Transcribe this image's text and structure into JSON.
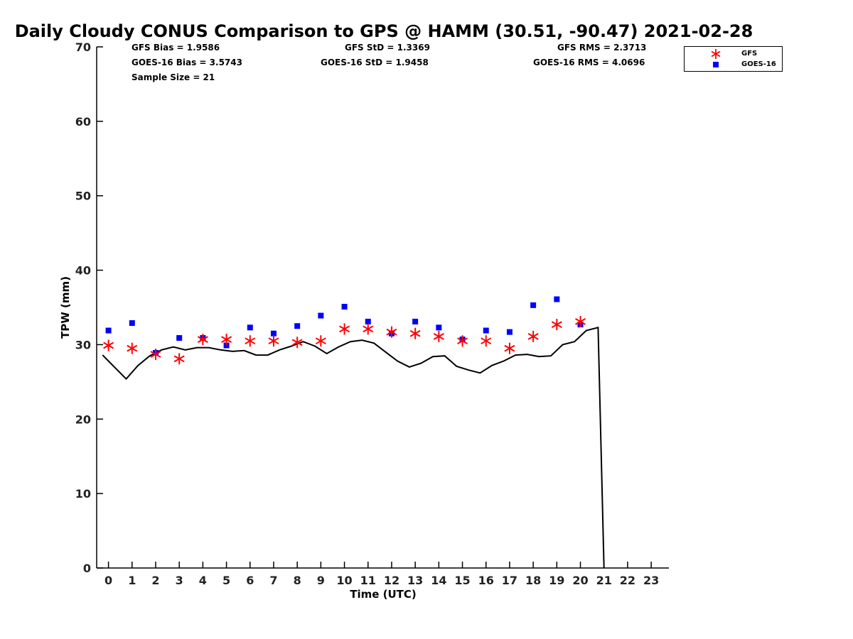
{
  "title": "Daily Cloudy CONUS Comparison to GPS @ HAMM (30.51, -90.47) 2021-02-28",
  "stats": {
    "gfs_bias": "GFS Bias = 1.9586",
    "goes_bias": "GOES-16 Bias = 3.5743",
    "sample_size": "Sample Size = 21",
    "gfs_std": "GFS StD = 1.3369",
    "goes_std": "GOES-16 StD = 1.9458",
    "gfs_rms": "GFS RMS = 2.3713",
    "goes_rms": "GOES-16 RMS = 4.0696"
  },
  "legend": {
    "gfs_label": "GFS",
    "goes_label": "GOES-16"
  },
  "colors": {
    "gfs": "#ff0000",
    "goes": "#0000ff",
    "gps_line": "#000000"
  },
  "chart_data": {
    "type": "scatter",
    "title": "Daily Cloudy CONUS Comparison to GPS @ HAMM (30.51, -90.47) 2021-02-28",
    "xlabel": "Time (UTC)",
    "ylabel": "TPW (mm)",
    "xlim": [
      -0.5,
      23.75
    ],
    "ylim": [
      0,
      70
    ],
    "x_ticks": [
      0,
      1,
      2,
      3,
      4,
      5,
      6,
      7,
      8,
      9,
      10,
      11,
      12,
      13,
      14,
      15,
      16,
      17,
      18,
      19,
      20,
      21,
      22,
      23
    ],
    "y_ticks": [
      0,
      10,
      20,
      30,
      40,
      50,
      60,
      70
    ],
    "grid": false,
    "legend_position": "top-right",
    "series": [
      {
        "name": "GFS",
        "marker": "asterisk",
        "x": [
          0,
          1,
          2,
          3,
          4,
          5,
          6,
          7,
          8,
          9,
          10,
          11,
          12,
          13,
          14,
          15,
          16,
          17,
          18,
          19,
          20
        ],
        "values": [
          29.9,
          29.5,
          28.7,
          28.1,
          30.7,
          30.7,
          30.5,
          30.5,
          30.3,
          30.5,
          32.1,
          32.1,
          31.7,
          31.5,
          31.1,
          30.5,
          30.5,
          29.5,
          31.1,
          32.7,
          33.1
        ]
      },
      {
        "name": "GOES-16",
        "marker": "square",
        "x": [
          0,
          1,
          2,
          3,
          4,
          5,
          6,
          7,
          8,
          9,
          10,
          11,
          12,
          13,
          14,
          15,
          16,
          17,
          18,
          19,
          20
        ],
        "values": [
          31.9,
          32.9,
          28.9,
          30.9,
          30.9,
          29.9,
          32.3,
          31.5,
          32.5,
          33.9,
          35.1,
          33.1,
          31.5,
          33.1,
          32.3,
          30.7,
          31.9,
          31.7,
          35.3,
          36.1,
          32.7
        ]
      },
      {
        "name": "GPS",
        "marker": "line",
        "x": [
          -0.25,
          0.25,
          0.75,
          1.25,
          1.75,
          2.25,
          2.75,
          3.25,
          3.75,
          4.25,
          4.75,
          5.25,
          5.75,
          6.25,
          6.75,
          7.25,
          7.75,
          8.25,
          8.75,
          9.25,
          9.75,
          10.25,
          10.75,
          11.25,
          11.75,
          12.25,
          12.75,
          13.25,
          13.75,
          14.25,
          14.75,
          15.25,
          15.75,
          16.25,
          16.75,
          17.25,
          17.75,
          18.25,
          18.75,
          19.25,
          19.75,
          20.25,
          20.75,
          21.0
        ],
        "values": [
          28.6,
          27.0,
          25.4,
          27.2,
          28.5,
          29.3,
          29.7,
          29.3,
          29.6,
          29.6,
          29.3,
          29.1,
          29.2,
          28.6,
          28.6,
          29.3,
          29.8,
          30.4,
          29.8,
          28.8,
          29.7,
          30.4,
          30.6,
          30.2,
          29.0,
          27.8,
          27.0,
          27.5,
          28.4,
          28.5,
          27.1,
          26.6,
          26.2,
          27.2,
          27.8,
          28.6,
          28.7,
          28.4,
          28.5,
          30.0,
          30.4,
          31.9,
          32.3,
          0
        ]
      }
    ]
  }
}
